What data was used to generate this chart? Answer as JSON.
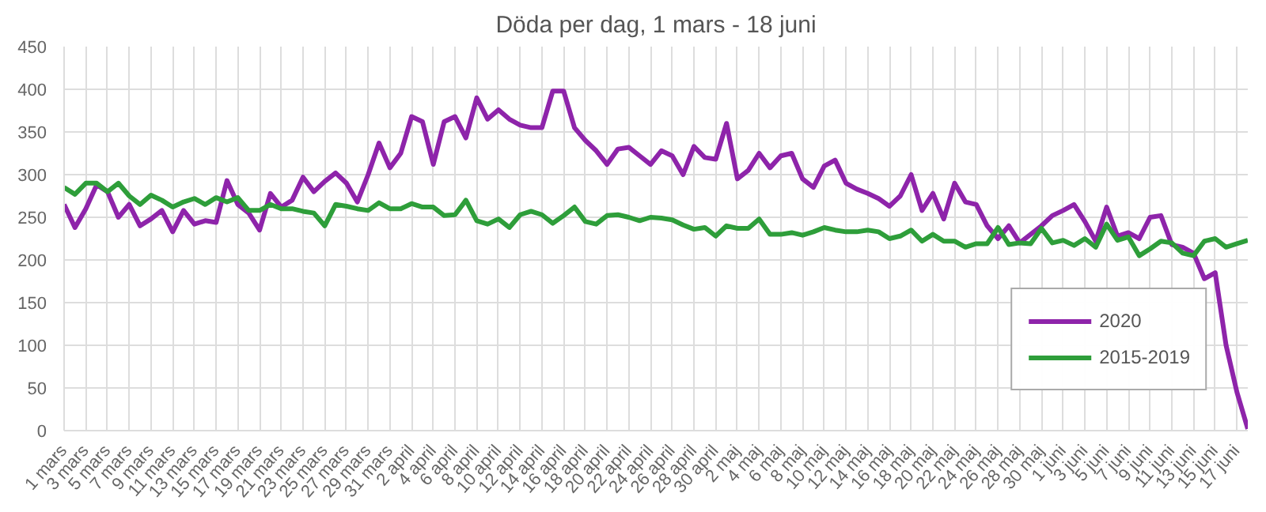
{
  "chart_data": {
    "type": "line",
    "title": "Döda per dag, 1 mars - 18 juni",
    "categories": [
      "1 mars",
      null,
      "3 mars",
      null,
      "5 mars",
      null,
      "7 mars",
      null,
      "9 mars",
      null,
      "11 mars",
      null,
      "13 mars",
      null,
      "15 mars",
      null,
      "17 mars",
      null,
      "19 mars",
      null,
      "21 mars",
      null,
      "23 mars",
      null,
      "25 mars",
      null,
      "27 mars",
      null,
      "29 mars",
      null,
      "31 mars",
      null,
      "2 april",
      null,
      "4 april",
      null,
      "6 april",
      null,
      "8 april",
      null,
      "10 april",
      null,
      "12 april",
      null,
      "14 april",
      null,
      "16 april",
      null,
      "18 april",
      null,
      "20 april",
      null,
      "22 april",
      null,
      "24 april",
      null,
      "26 april",
      null,
      "28 april",
      null,
      "30 april",
      null,
      "2 maj",
      null,
      "4 maj",
      null,
      "6 maj",
      null,
      "8 maj",
      null,
      "10 maj",
      null,
      "12 maj",
      null,
      "14 maj",
      null,
      "16 maj",
      null,
      "18 maj",
      null,
      "20 maj",
      null,
      "22 maj",
      null,
      "24 maj",
      null,
      "26 maj",
      null,
      "28 maj",
      null,
      "30 maj",
      null,
      "1 juni",
      null,
      "3 juni",
      null,
      "5 juni",
      null,
      "7 juni",
      null,
      "9 juni",
      null,
      "11 juni",
      null,
      "13 juni",
      null,
      "15 juni",
      null,
      "17 juni",
      null
    ],
    "series": [
      {
        "name": "2020",
        "color": "#8e24aa",
        "values": [
          265,
          238,
          260,
          288,
          280,
          250,
          265,
          240,
          248,
          258,
          233,
          258,
          242,
          246,
          244,
          293,
          265,
          255,
          235,
          278,
          262,
          270,
          297,
          280,
          292,
          302,
          290,
          268,
          300,
          337,
          308,
          325,
          368,
          362,
          312,
          362,
          368,
          343,
          390,
          365,
          376,
          365,
          358,
          355,
          355,
          398,
          398,
          355,
          340,
          328,
          312,
          330,
          332,
          322,
          312,
          328,
          322,
          300,
          333,
          320,
          318,
          360,
          295,
          305,
          325,
          308,
          322,
          325,
          295,
          285,
          310,
          317,
          290,
          283,
          278,
          272,
          263,
          275,
          300,
          258,
          278,
          248,
          290,
          268,
          265,
          240,
          225,
          240,
          220,
          230,
          240,
          252,
          258,
          265,
          245,
          222,
          262,
          228,
          232,
          225,
          250,
          252,
          218,
          215,
          208,
          178,
          185,
          100,
          45,
          2
        ]
      },
      {
        "name": "2015-2019",
        "color": "#2e9e3a",
        "values": [
          285,
          277,
          290,
          290,
          280,
          290,
          275,
          265,
          276,
          270,
          262,
          268,
          272,
          265,
          273,
          268,
          273,
          258,
          258,
          265,
          260,
          260,
          257,
          255,
          240,
          265,
          263,
          260,
          258,
          267,
          260,
          260,
          266,
          262,
          262,
          252,
          253,
          270,
          246,
          242,
          248,
          238,
          253,
          257,
          253,
          243,
          252,
          262,
          245,
          242,
          252,
          253,
          250,
          246,
          250,
          249,
          247,
          241,
          236,
          238,
          228,
          240,
          237,
          237,
          248,
          230,
          230,
          232,
          229,
          233,
          238,
          235,
          233,
          233,
          235,
          233,
          225,
          228,
          235,
          222,
          230,
          222,
          222,
          215,
          219,
          219,
          238,
          218,
          220,
          219,
          237,
          220,
          223,
          217,
          225,
          215,
          242,
          223,
          227,
          205,
          213,
          222,
          220,
          208,
          205,
          222,
          225,
          215,
          219,
          223
        ]
      }
    ],
    "ylim": [
      0,
      450
    ],
    "yticks": [
      0,
      50,
      100,
      150,
      200,
      250,
      300,
      350,
      400,
      450
    ],
    "grid": true,
    "legend": "bottom right",
    "marker": "none",
    "line_style": "solid"
  }
}
